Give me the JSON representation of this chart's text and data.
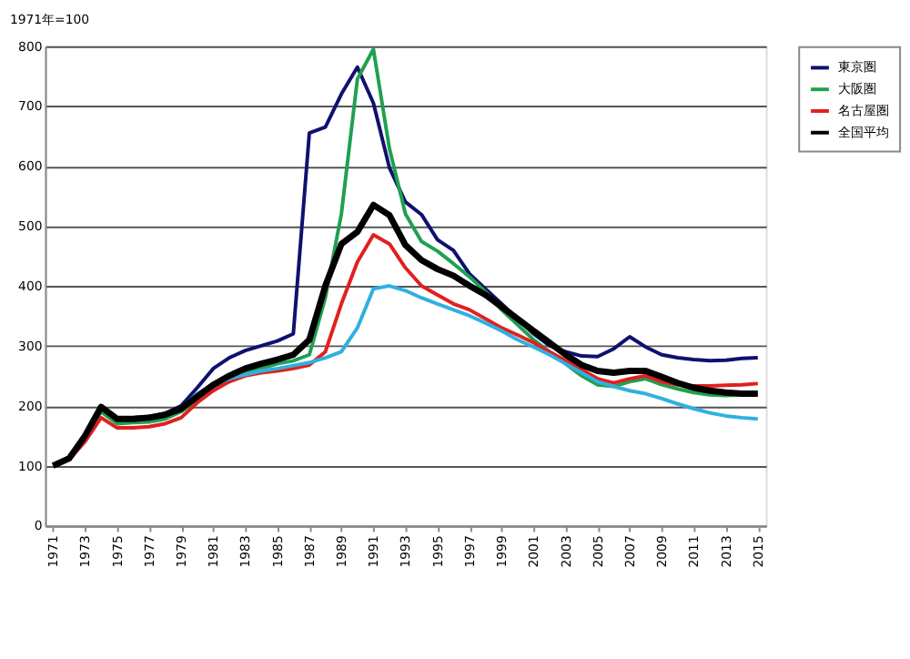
{
  "chart_data": {
    "type": "line",
    "ylabel": "1971年=100",
    "x": [
      1971,
      1972,
      1973,
      1974,
      1975,
      1976,
      1977,
      1978,
      1979,
      1980,
      1981,
      1982,
      1983,
      1984,
      1985,
      1986,
      1987,
      1988,
      1989,
      1990,
      1991,
      1992,
      1993,
      1994,
      1995,
      1996,
      1997,
      1998,
      1999,
      2000,
      2001,
      2002,
      2003,
      2004,
      2005,
      2006,
      2007,
      2008,
      2009,
      2010,
      2011,
      2012,
      2013,
      2014,
      2015
    ],
    "xlim": [
      1970.5,
      2015.5
    ],
    "xticks": [
      1971,
      1973,
      1975,
      1977,
      1979,
      1981,
      1983,
      1985,
      1987,
      1989,
      1991,
      1993,
      1995,
      1997,
      1999,
      2001,
      2003,
      2005,
      2007,
      2009,
      2011,
      2013,
      2015
    ],
    "ylim": [
      0,
      800
    ],
    "yticks": [
      0,
      100,
      200,
      300,
      400,
      500,
      600,
      700,
      800
    ],
    "grid": "y",
    "legend": "right",
    "marker": "none",
    "line_style": "solid",
    "series": [
      {
        "name": "東京圏",
        "color": "#101070",
        "values": [
          null,
          null,
          null,
          null,
          178,
          180,
          182,
          187,
          200,
          230,
          262,
          280,
          292,
          300,
          308,
          320,
          655,
          665,
          720,
          765,
          705,
          597,
          540,
          519,
          477,
          459,
          420,
          395,
          370,
          345,
          320,
          300,
          290,
          283,
          282,
          295,
          315,
          298,
          285,
          280,
          277,
          275,
          276,
          279,
          280
        ]
      },
      {
        "name": "大阪圏",
        "color": "#20a050",
        "values": [
          null,
          null,
          145,
          190,
          170,
          172,
          173,
          178,
          190,
          210,
          228,
          245,
          255,
          262,
          270,
          275,
          285,
          380,
          520,
          745,
          795,
          629,
          520,
          474,
          458,
          437,
          415,
          390,
          360,
          335,
          310,
          290,
          270,
          250,
          235,
          232,
          240,
          245,
          235,
          228,
          222,
          218,
          217,
          218,
          218
        ]
      },
      {
        "name": "名古屋圏",
        "color": "#e02020",
        "values": [
          100,
          110,
          140,
          180,
          163,
          163,
          165,
          170,
          180,
          205,
          225,
          240,
          250,
          255,
          258,
          262,
          268,
          290,
          370,
          440,
          485,
          470,
          430,
          400,
          385,
          370,
          360,
          345,
          330,
          318,
          305,
          290,
          275,
          260,
          245,
          238,
          245,
          250,
          240,
          235,
          233,
          233,
          234,
          235,
          237
        ]
      },
      {
        "color": "#30b0e0",
        "values": [
          null,
          null,
          null,
          null,
          null,
          null,
          null,
          null,
          195,
          220,
          235,
          245,
          252,
          258,
          262,
          267,
          272,
          280,
          290,
          330,
          395,
          400,
          392,
          380,
          370,
          360,
          350,
          338,
          325,
          310,
          298,
          285,
          270,
          255,
          240,
          232,
          225,
          220,
          212,
          203,
          195,
          188,
          183,
          180,
          178
        ]
      },
      {
        "name": "全国平均",
        "color": "#000000",
        "values": [
          100,
          112,
          150,
          198,
          178,
          178,
          180,
          185,
          195,
          215,
          235,
          250,
          262,
          270,
          277,
          285,
          310,
          400,
          470,
          490,
          535,
          518,
          468,
          443,
          428,
          417,
          400,
          385,
          365,
          345,
          325,
          305,
          285,
          268,
          258,
          255,
          258,
          258,
          248,
          238,
          230,
          225,
          222,
          220,
          220
        ]
      }
    ]
  }
}
